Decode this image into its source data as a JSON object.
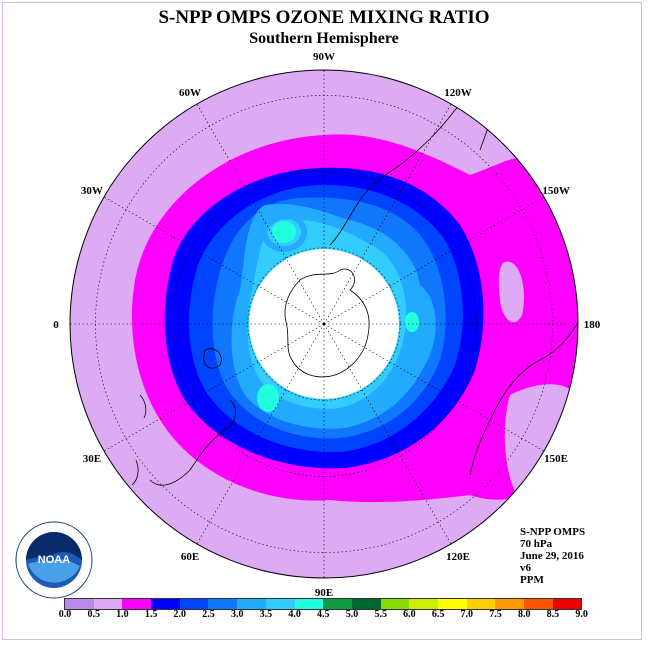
{
  "title": "S-NPP OMPS OZONE MIXING RATIO",
  "subtitle": "Southern Hemisphere",
  "longitude_labels": [
    {
      "text": "90W",
      "deg": 180
    },
    {
      "text": "60W",
      "deg": 150
    },
    {
      "text": "30W",
      "deg": 120
    },
    {
      "text": "0",
      "deg": 90
    },
    {
      "text": "30E",
      "deg": 60
    },
    {
      "text": "60E",
      "deg": 30
    },
    {
      "text": "90E",
      "deg": 0
    },
    {
      "text": "120E",
      "deg": 330
    },
    {
      "text": "150E",
      "deg": 300
    },
    {
      "text": "180",
      "deg": 270
    },
    {
      "text": "150W",
      "deg": 240
    },
    {
      "text": "120W",
      "deg": 210
    }
  ],
  "info": {
    "instrument": "S-NPP OMPS",
    "level": "70 hPa",
    "date": "June 29, 2016",
    "version": "v6",
    "units": "PPM"
  },
  "logo_text": "NOAA",
  "colorbar": {
    "labels": [
      "0.0",
      "0.5",
      "1.0",
      "1.5",
      "2.0",
      "2.5",
      "3.0",
      "3.5",
      "4.0",
      "4.5",
      "5.0",
      "5.5",
      "6.0",
      "6.5",
      "7.0",
      "7.5",
      "8.0",
      "8.5",
      "9.0"
    ],
    "colors": [
      "#bb88ee",
      "#ddaaf4",
      "#ff00ff",
      "#0000ff",
      "#0044ff",
      "#1177ff",
      "#22aaff",
      "#33ccff",
      "#22ffdd",
      "#119944",
      "#006633",
      "#88dd00",
      "#ccee00",
      "#ffff00",
      "#ffcc00",
      "#ff9900",
      "#ff5500",
      "#ee0000",
      "#885533"
    ]
  },
  "map_colors": {
    "outer": "#ddaaf4",
    "band_1_0": "#ff00ff",
    "band_1_5": "#0000ff",
    "band_2_0": "#0044ff",
    "band_2_5": "#1177ff",
    "band_3_0": "#22aaff",
    "band_3_5": "#33ccff",
    "band_4_0": "#22ffdd",
    "no_data": "#ffffff"
  }
}
